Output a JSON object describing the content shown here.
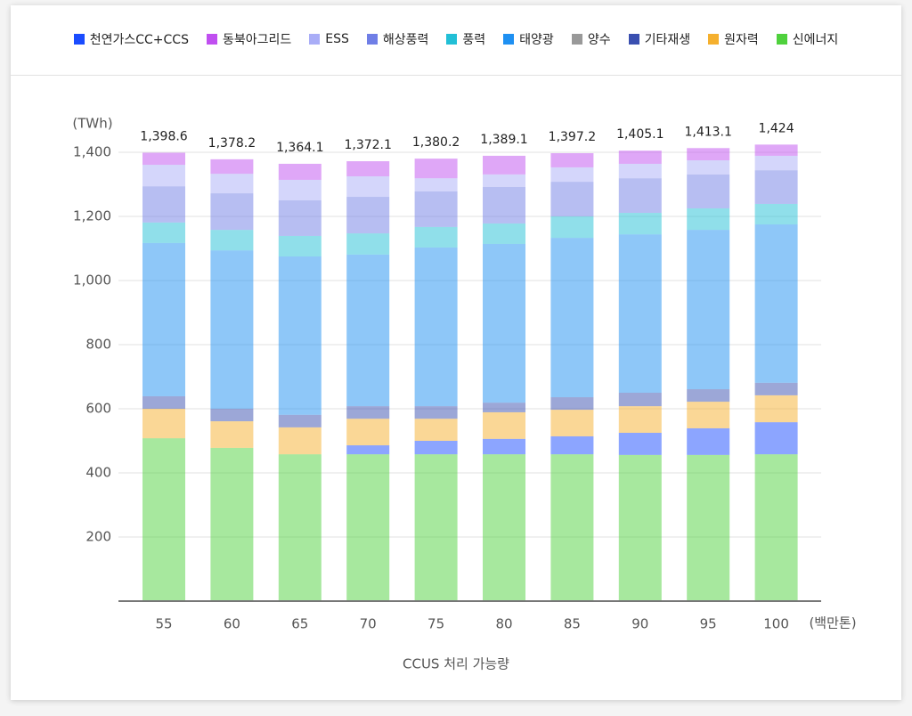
{
  "chart_data": {
    "type": "stacked_bar",
    "x_label": "CCUS 처리 가능량",
    "x_unit": "(백만톤)",
    "y_unit": "(TWh)",
    "categories": [
      "55",
      "60",
      "65",
      "70",
      "75",
      "80",
      "85",
      "90",
      "95",
      "100"
    ],
    "ylim": [
      0,
      1400
    ],
    "yticks": [
      {
        "value": 200,
        "label": "200"
      },
      {
        "value": 400,
        "label": "400"
      },
      {
        "value": 600,
        "label": "600"
      },
      {
        "value": 800,
        "label": "800"
      },
      {
        "value": 1000,
        "label": "1,000"
      },
      {
        "value": 1200,
        "label": "1,200"
      },
      {
        "value": 1400,
        "label": "1,400"
      }
    ],
    "grid": true,
    "totals": [
      1398.6,
      1378.2,
      1364.1,
      1372.1,
      1380.2,
      1389.1,
      1397.2,
      1405.1,
      1413.1,
      1424
    ],
    "total_labels": [
      "1,398.6",
      "1,378.2",
      "1,364.1",
      "1,372.1",
      "1,380.2",
      "1,389.1",
      "1,397.2",
      "1,405.1",
      "1,413.1",
      "1,424"
    ],
    "legend_order": [
      1,
      9,
      8,
      7,
      6,
      5,
      4,
      3,
      2,
      0
    ],
    "series": [
      {
        "name": "신에너지",
        "color": "#4fd13d",
        "values": [
          508,
          478,
          458,
          458,
          458,
          458,
          458,
          456,
          456,
          458
        ]
      },
      {
        "name": "천연가스CC+CCS",
        "color": "#1a4cff",
        "values": [
          0,
          0,
          0,
          28,
          42,
          48,
          56,
          69,
          83,
          100
        ]
      },
      {
        "name": "원자력",
        "color": "#f5b02e",
        "values": [
          92,
          83,
          84,
          83,
          69,
          83,
          83,
          83,
          83,
          84
        ]
      },
      {
        "name": "기타재생",
        "color": "#3a4fb0",
        "values": [
          39,
          39,
          39,
          39,
          39,
          30,
          39,
          42,
          39,
          39
        ]
      },
      {
        "name": "양수",
        "color": "#999999",
        "values": [
          0,
          0,
          0,
          0,
          0,
          0,
          0,
          0,
          0,
          0
        ]
      },
      {
        "name": "태양광",
        "color": "#1e90f2",
        "values": [
          478,
          494,
          494,
          473,
          495,
          495,
          497,
          494,
          497,
          494
        ]
      },
      {
        "name": "풍력",
        "color": "#22bfd6",
        "values": [
          64,
          64,
          64,
          66,
          64,
          64,
          67,
          67,
          67,
          64
        ]
      },
      {
        "name": "해상풍력",
        "color": "#6f7ee6",
        "values": [
          113,
          114,
          111,
          114,
          111,
          114,
          108,
          108,
          106,
          105
        ]
      },
      {
        "name": "ESS",
        "color": "#a9adf7",
        "values": [
          67,
          61,
          64,
          64,
          41,
          39,
          45,
          45,
          44,
          45
        ]
      },
      {
        "name": "동북아그리드",
        "color": "#c04ff0",
        "values": [
          37.6,
          45.2,
          50.1,
          47.1,
          61.2,
          58.1,
          44.2,
          41.1,
          38.1,
          35
        ]
      }
    ]
  }
}
